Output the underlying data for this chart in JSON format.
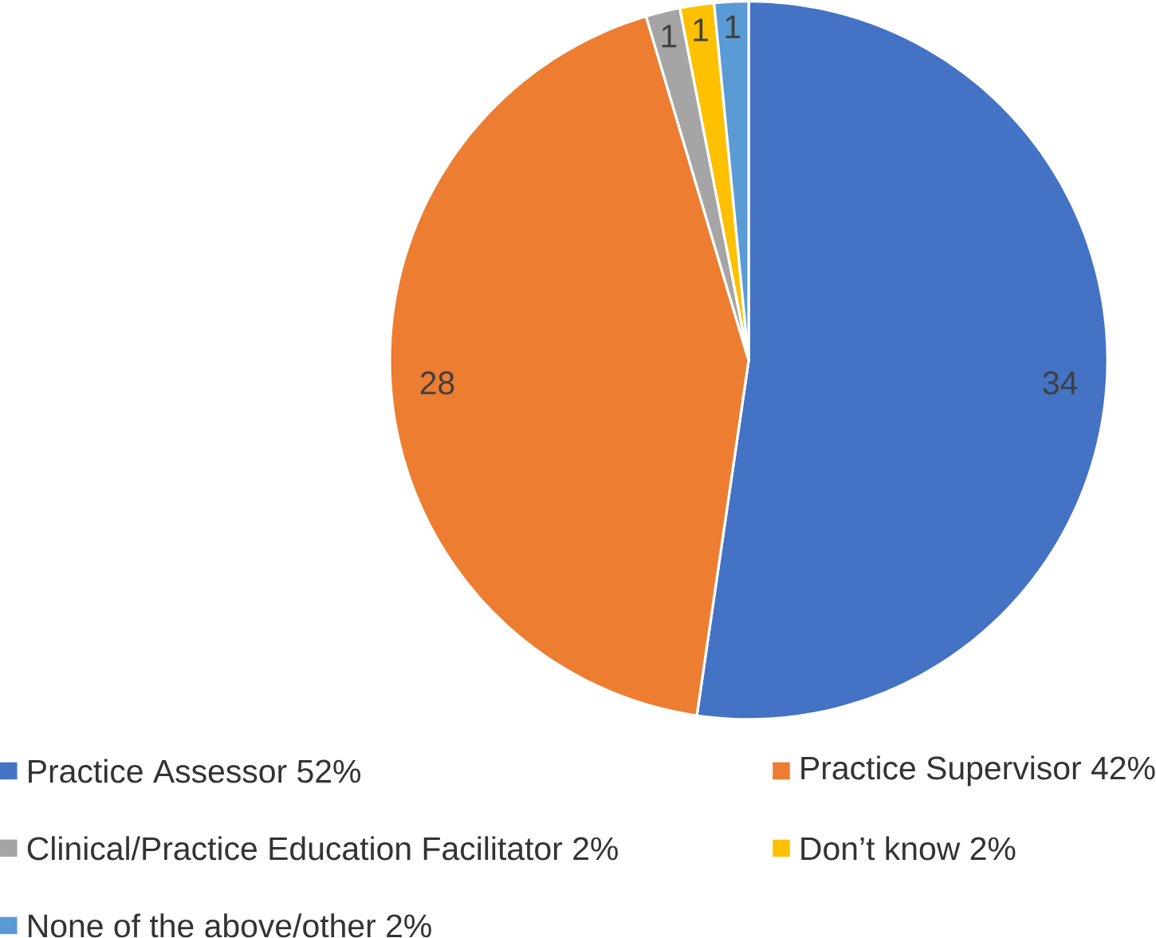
{
  "chart_data": {
    "type": "pie",
    "categories": [
      "Practice Assessor 52%",
      "Practice Supervisor 42%",
      "Clinical/Practice Education Facilitator 2%",
      "Don’t know 2%",
      "None of the above/other 2%"
    ],
    "values": [
      34,
      28,
      1,
      1,
      1
    ],
    "colors": [
      "#4472c4",
      "#ed7d31",
      "#a5a5a5",
      "#ffc000",
      "#5b9bd5"
    ],
    "data_labels": true,
    "legend": "bottom"
  }
}
